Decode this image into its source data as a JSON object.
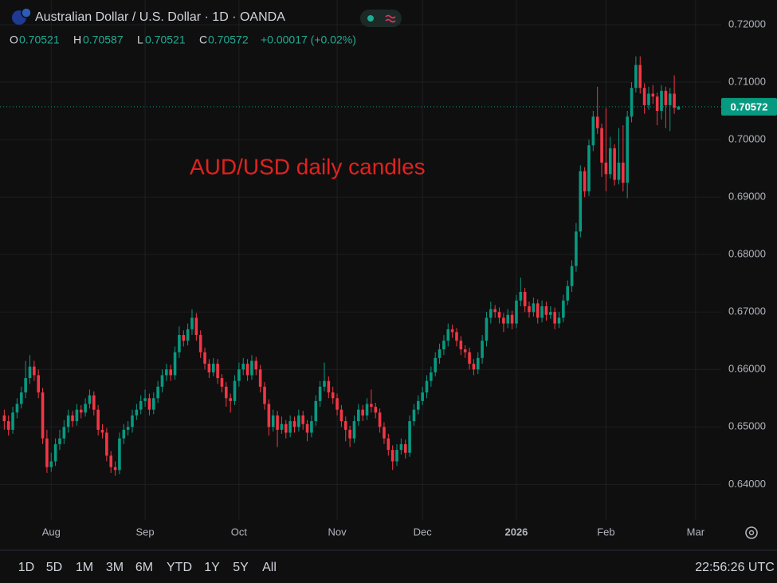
{
  "chart_data": {
    "type": "candlestick",
    "title": "Australian Dollar / U.S. Dollar · 1D · OANDA",
    "legend_labels": [
      "O",
      "H",
      "L",
      "C"
    ],
    "legend_values": [
      0.70521,
      0.70587,
      0.70521,
      0.70572
    ],
    "change": "+0.00017 (+0.02%)",
    "annotation": "AUD/USD daily candles",
    "up_color": "#089981",
    "down_color": "#f23645",
    "annotation_color": "#e0221f",
    "grid": true,
    "ylim": [
      0.6338,
      0.7243
    ],
    "yticks": [
      {
        "value": 0.64,
        "label": "0.64000"
      },
      {
        "value": 0.65,
        "label": "0.65000"
      },
      {
        "value": 0.66,
        "label": "0.66000"
      },
      {
        "value": 0.67,
        "label": "0.67000"
      },
      {
        "value": 0.68,
        "label": "0.68000"
      },
      {
        "value": 0.69,
        "label": "0.69000"
      },
      {
        "value": 0.7,
        "label": "0.70000"
      },
      {
        "value": 0.71,
        "label": "0.71000"
      },
      {
        "value": 0.72,
        "label": "0.72000"
      }
    ],
    "xlim": [
      -1,
      168
    ],
    "xticks": [
      {
        "value": 11,
        "label": "Aug"
      },
      {
        "value": 33,
        "label": "Sep"
      },
      {
        "value": 55,
        "label": "Oct"
      },
      {
        "value": 78,
        "label": "Nov"
      },
      {
        "value": 98,
        "label": "Dec"
      },
      {
        "value": 120,
        "label": "2026"
      },
      {
        "value": 141,
        "label": "Feb"
      },
      {
        "value": 162,
        "label": "Mar"
      }
    ],
    "candles": [
      [
        0.652,
        0.653,
        0.6495,
        0.651
      ],
      [
        0.651,
        0.652,
        0.6485,
        0.6495
      ],
      [
        0.6495,
        0.6535,
        0.6488,
        0.6525
      ],
      [
        0.6525,
        0.655,
        0.6515,
        0.654
      ],
      [
        0.654,
        0.657,
        0.6532,
        0.656
      ],
      [
        0.656,
        0.6615,
        0.655,
        0.6585
      ],
      [
        0.6585,
        0.6625,
        0.6575,
        0.6605
      ],
      [
        0.6605,
        0.6615,
        0.658,
        0.659
      ],
      [
        0.659,
        0.66,
        0.655,
        0.656
      ],
      [
        0.656,
        0.6568,
        0.647,
        0.648
      ],
      [
        0.648,
        0.6495,
        0.642,
        0.643
      ],
      [
        0.643,
        0.6455,
        0.6422,
        0.644
      ],
      [
        0.644,
        0.648,
        0.6432,
        0.647
      ],
      [
        0.647,
        0.6495,
        0.646,
        0.648
      ],
      [
        0.648,
        0.6512,
        0.647,
        0.65
      ],
      [
        0.65,
        0.653,
        0.649,
        0.652
      ],
      [
        0.652,
        0.6528,
        0.65,
        0.651
      ],
      [
        0.651,
        0.654,
        0.6502,
        0.653
      ],
      [
        0.653,
        0.6538,
        0.6515,
        0.6525
      ],
      [
        0.6525,
        0.655,
        0.6518,
        0.654
      ],
      [
        0.654,
        0.6565,
        0.6532,
        0.6555
      ],
      [
        0.6555,
        0.6562,
        0.652,
        0.653
      ],
      [
        0.653,
        0.6538,
        0.6485,
        0.6495
      ],
      [
        0.6495,
        0.6505,
        0.648,
        0.649
      ],
      [
        0.649,
        0.6498,
        0.644,
        0.645
      ],
      [
        0.645,
        0.6458,
        0.642,
        0.643
      ],
      [
        0.643,
        0.644,
        0.6415,
        0.6425
      ],
      [
        0.6425,
        0.649,
        0.6418,
        0.648
      ],
      [
        0.648,
        0.6505,
        0.647,
        0.6495
      ],
      [
        0.6495,
        0.651,
        0.6485,
        0.65
      ],
      [
        0.65,
        0.653,
        0.649,
        0.652
      ],
      [
        0.652,
        0.654,
        0.6512,
        0.653
      ],
      [
        0.653,
        0.6555,
        0.6522,
        0.6545
      ],
      [
        0.6545,
        0.6565,
        0.6535,
        0.655
      ],
      [
        0.655,
        0.6558,
        0.652,
        0.653
      ],
      [
        0.653,
        0.656,
        0.6522,
        0.655
      ],
      [
        0.655,
        0.658,
        0.6542,
        0.657
      ],
      [
        0.657,
        0.66,
        0.656,
        0.659
      ],
      [
        0.659,
        0.661,
        0.658,
        0.66
      ],
      [
        0.66,
        0.6608,
        0.658,
        0.659
      ],
      [
        0.659,
        0.664,
        0.6582,
        0.663
      ],
      [
        0.663,
        0.6675,
        0.662,
        0.666
      ],
      [
        0.666,
        0.6668,
        0.664,
        0.665
      ],
      [
        0.665,
        0.668,
        0.6642,
        0.667
      ],
      [
        0.667,
        0.6705,
        0.666,
        0.669
      ],
      [
        0.669,
        0.6698,
        0.665,
        0.666
      ],
      [
        0.666,
        0.6668,
        0.662,
        0.663
      ],
      [
        0.663,
        0.6638,
        0.66,
        0.661
      ],
      [
        0.661,
        0.6618,
        0.6585,
        0.6595
      ],
      [
        0.6595,
        0.662,
        0.6588,
        0.661
      ],
      [
        0.661,
        0.6618,
        0.6575,
        0.6585
      ],
      [
        0.6585,
        0.6592,
        0.656,
        0.657
      ],
      [
        0.657,
        0.6578,
        0.6535,
        0.655
      ],
      [
        0.655,
        0.6558,
        0.6525,
        0.6545
      ],
      [
        0.6545,
        0.659,
        0.6538,
        0.658
      ],
      [
        0.658,
        0.6612,
        0.657,
        0.66
      ],
      [
        0.66,
        0.662,
        0.659,
        0.661
      ],
      [
        0.661,
        0.6618,
        0.658,
        0.659
      ],
      [
        0.659,
        0.6625,
        0.6582,
        0.6615
      ],
      [
        0.6615,
        0.6622,
        0.659,
        0.66
      ],
      [
        0.66,
        0.6608,
        0.656,
        0.657
      ],
      [
        0.657,
        0.6578,
        0.653,
        0.654
      ],
      [
        0.654,
        0.6548,
        0.6485,
        0.65
      ],
      [
        0.65,
        0.653,
        0.6492,
        0.652
      ],
      [
        0.652,
        0.6528,
        0.6465,
        0.6495
      ],
      [
        0.6495,
        0.6518,
        0.6488,
        0.6505
      ],
      [
        0.6505,
        0.6512,
        0.648,
        0.649
      ],
      [
        0.649,
        0.652,
        0.6482,
        0.651
      ],
      [
        0.651,
        0.6518,
        0.649,
        0.65
      ],
      [
        0.65,
        0.653,
        0.6492,
        0.652
      ],
      [
        0.652,
        0.6528,
        0.6495,
        0.6505
      ],
      [
        0.6505,
        0.6512,
        0.6475,
        0.649
      ],
      [
        0.649,
        0.652,
        0.6482,
        0.651
      ],
      [
        0.651,
        0.6555,
        0.6502,
        0.6545
      ],
      [
        0.6545,
        0.658,
        0.6535,
        0.657
      ],
      [
        0.657,
        0.6612,
        0.6562,
        0.658
      ],
      [
        0.658,
        0.6588,
        0.655,
        0.656
      ],
      [
        0.656,
        0.657,
        0.654,
        0.655
      ],
      [
        0.655,
        0.6558,
        0.652,
        0.653
      ],
      [
        0.653,
        0.6538,
        0.65,
        0.651
      ],
      [
        0.651,
        0.6518,
        0.6475,
        0.6495
      ],
      [
        0.6495,
        0.6502,
        0.6465,
        0.648
      ],
      [
        0.648,
        0.652,
        0.6472,
        0.651
      ],
      [
        0.651,
        0.654,
        0.6502,
        0.653
      ],
      [
        0.653,
        0.6538,
        0.651,
        0.652
      ],
      [
        0.652,
        0.655,
        0.6512,
        0.654
      ],
      [
        0.654,
        0.6565,
        0.6525,
        0.6535
      ],
      [
        0.6535,
        0.6542,
        0.6515,
        0.6525
      ],
      [
        0.6525,
        0.6532,
        0.649,
        0.65
      ],
      [
        0.65,
        0.6508,
        0.647,
        0.648
      ],
      [
        0.648,
        0.6488,
        0.645,
        0.646
      ],
      [
        0.646,
        0.6468,
        0.6425,
        0.644
      ],
      [
        0.644,
        0.647,
        0.6432,
        0.646
      ],
      [
        0.646,
        0.648,
        0.6452,
        0.647
      ],
      [
        0.647,
        0.6478,
        0.6445,
        0.6455
      ],
      [
        0.6455,
        0.652,
        0.6448,
        0.651
      ],
      [
        0.651,
        0.654,
        0.6502,
        0.653
      ],
      [
        0.653,
        0.6555,
        0.6522,
        0.6545
      ],
      [
        0.6545,
        0.657,
        0.6538,
        0.656
      ],
      [
        0.656,
        0.659,
        0.655,
        0.658
      ],
      [
        0.658,
        0.6605,
        0.657,
        0.6595
      ],
      [
        0.6595,
        0.663,
        0.6588,
        0.662
      ],
      [
        0.662,
        0.6645,
        0.661,
        0.6635
      ],
      [
        0.6635,
        0.666,
        0.6625,
        0.665
      ],
      [
        0.665,
        0.668,
        0.664,
        0.667
      ],
      [
        0.667,
        0.6678,
        0.6655,
        0.6665
      ],
      [
        0.6665,
        0.6672,
        0.664,
        0.665
      ],
      [
        0.665,
        0.6658,
        0.6625,
        0.6635
      ],
      [
        0.6635,
        0.6642,
        0.662,
        0.663
      ],
      [
        0.663,
        0.6638,
        0.66,
        0.661
      ],
      [
        0.661,
        0.6618,
        0.659,
        0.66
      ],
      [
        0.66,
        0.663,
        0.6592,
        0.662
      ],
      [
        0.662,
        0.666,
        0.661,
        0.665
      ],
      [
        0.665,
        0.67,
        0.664,
        0.669
      ],
      [
        0.669,
        0.6718,
        0.668,
        0.6705
      ],
      [
        0.6705,
        0.6712,
        0.669,
        0.67
      ],
      [
        0.67,
        0.6708,
        0.668,
        0.669
      ],
      [
        0.669,
        0.6698,
        0.6665,
        0.668
      ],
      [
        0.668,
        0.6705,
        0.6672,
        0.6695
      ],
      [
        0.6695,
        0.6702,
        0.667,
        0.668
      ],
      [
        0.668,
        0.673,
        0.6672,
        0.672
      ],
      [
        0.672,
        0.676,
        0.671,
        0.6735
      ],
      [
        0.6735,
        0.6742,
        0.67,
        0.671
      ],
      [
        0.671,
        0.6718,
        0.669,
        0.67
      ],
      [
        0.67,
        0.6725,
        0.6692,
        0.6715
      ],
      [
        0.6715,
        0.6722,
        0.668,
        0.669
      ],
      [
        0.669,
        0.672,
        0.6682,
        0.671
      ],
      [
        0.671,
        0.6718,
        0.6685,
        0.6695
      ],
      [
        0.6695,
        0.671,
        0.6688,
        0.67
      ],
      [
        0.67,
        0.6708,
        0.667,
        0.668
      ],
      [
        0.668,
        0.67,
        0.6672,
        0.669
      ],
      [
        0.669,
        0.673,
        0.6682,
        0.672
      ],
      [
        0.672,
        0.6755,
        0.6712,
        0.6745
      ],
      [
        0.6745,
        0.679,
        0.6735,
        0.678
      ],
      [
        0.678,
        0.6855,
        0.677,
        0.684
      ],
      [
        0.684,
        0.6955,
        0.683,
        0.6945
      ],
      [
        0.6945,
        0.6952,
        0.69,
        0.691
      ],
      [
        0.691,
        0.7,
        0.6902,
        0.699
      ],
      [
        0.699,
        0.705,
        0.698,
        0.704
      ],
      [
        0.704,
        0.7092,
        0.701,
        0.702
      ],
      [
        0.702,
        0.7028,
        0.6935,
        0.696
      ],
      [
        0.696,
        0.7055,
        0.691,
        0.694
      ],
      [
        0.694,
        0.7005,
        0.6932,
        0.6985
      ],
      [
        0.6985,
        0.6992,
        0.692,
        0.693
      ],
      [
        0.693,
        0.702,
        0.6922,
        0.696
      ],
      [
        0.696,
        0.7025,
        0.691,
        0.6925
      ],
      [
        0.6925,
        0.705,
        0.6898,
        0.704
      ],
      [
        0.704,
        0.71,
        0.703,
        0.709
      ],
      [
        0.709,
        0.7145,
        0.7082,
        0.713
      ],
      [
        0.713,
        0.7145,
        0.708,
        0.709
      ],
      [
        0.709,
        0.7098,
        0.7045,
        0.706
      ],
      [
        0.706,
        0.7092,
        0.7052,
        0.708
      ],
      [
        0.708,
        0.7095,
        0.7062,
        0.7075
      ],
      [
        0.7075,
        0.7082,
        0.7025,
        0.705
      ],
      [
        0.705,
        0.7095,
        0.7035,
        0.7085
      ],
      [
        0.7085,
        0.7092,
        0.702,
        0.706
      ],
      [
        0.706,
        0.709,
        0.7015,
        0.708
      ],
      [
        0.708,
        0.7112,
        0.7045,
        0.70555
      ],
      [
        0.70521,
        0.70587,
        0.70521,
        0.70572
      ]
    ]
  },
  "toolbar": {
    "ranges": [
      "1D",
      "5D",
      "1M",
      "3M",
      "6M",
      "YTD",
      "1Y",
      "5Y",
      "All"
    ],
    "clock": "22:56:26 UTC"
  }
}
